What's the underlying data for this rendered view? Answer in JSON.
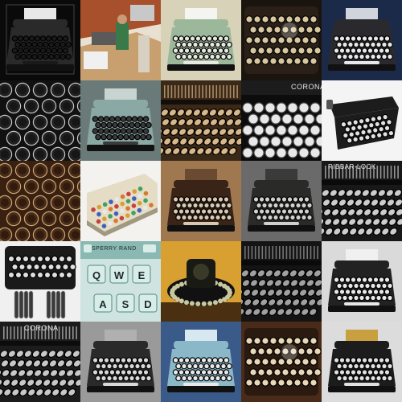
{
  "mosaic": {
    "rows": 5,
    "columns": 5,
    "subject": "typewriter",
    "tiles": [
      {
        "row": 0,
        "col": 0,
        "scene": "front",
        "bg": "#0a0a0a",
        "body": "#2a2a2a",
        "keys": "#1a1a1a",
        "paper": "#e8e8e8",
        "frame": "#444444"
      },
      {
        "row": 0,
        "col": 1,
        "scene": "room",
        "bg": "#c8a070",
        "body": "#8a7a6a",
        "keys": "#333333",
        "paper": "#f0f0f0"
      },
      {
        "row": 0,
        "col": 2,
        "scene": "front",
        "bg": "#d8d2b8",
        "body": "#9cb89a",
        "keys": "#e8e8e0",
        "paper": "#f4f4f0"
      },
      {
        "row": 0,
        "col": 3,
        "scene": "keys-top",
        "bg": "#1a140e",
        "body": "#2a2018",
        "keys": "#d8c8a0"
      },
      {
        "row": 0,
        "col": 4,
        "scene": "front",
        "bg": "#1c2a4a",
        "body": "#2a2a2e",
        "keys": "#e8e8e8",
        "paper": "#d0d4dc"
      },
      {
        "row": 1,
        "col": 0,
        "scene": "keys-close",
        "bg": "#111111",
        "body": "#222222",
        "keys": "#c8c8c8"
      },
      {
        "row": 1,
        "col": 1,
        "scene": "front",
        "bg": "#6a7a78",
        "body": "#8aa8a4",
        "keys": "#3a3a3a",
        "paper": "#c8d4d0"
      },
      {
        "row": 1,
        "col": 2,
        "scene": "keys-angled",
        "bg": "#140e0a",
        "body": "#3a2818",
        "keys": "#d8b888"
      },
      {
        "row": 1,
        "col": 3,
        "scene": "keys-letters",
        "bg": "#0c0c0c",
        "body": "#1c1c1c",
        "keys": "#e8e8e8",
        "brand": "CORONA"
      },
      {
        "row": 1,
        "col": 4,
        "scene": "portable",
        "bg": "#f4f4f4",
        "body": "#1c1c1c",
        "keys": "#e0e0e0"
      },
      {
        "row": 2,
        "col": 0,
        "scene": "keys-close",
        "bg": "#3a2010",
        "body": "#4a2c18",
        "keys": "#c8a878"
      },
      {
        "row": 2,
        "col": 1,
        "scene": "colorful",
        "bg": "#f4f2ee",
        "body": "#e4dcc4",
        "keys": "#d8b080"
      },
      {
        "row": 2,
        "col": 2,
        "scene": "front",
        "bg": "#a07850",
        "body": "#3a2418",
        "keys": "#d8c8b0",
        "paper": "#6a4a30"
      },
      {
        "row": 2,
        "col": 3,
        "scene": "front",
        "bg": "#6a6a6a",
        "body": "#2a2a28",
        "keys": "#d0d0d0",
        "paper": "#3a3a3a"
      },
      {
        "row": 2,
        "col": 4,
        "scene": "keys-angled",
        "bg": "#0a0a0a",
        "body": "#181818",
        "keys": "#cccccc",
        "brand": "RIBBAR-LOCK"
      },
      {
        "row": 3,
        "col": 0,
        "scene": "hands",
        "bg": "#f0f0f0",
        "body": "#1a1a1a",
        "keys": "#e0e0e0"
      },
      {
        "row": 3,
        "col": 1,
        "scene": "keys-letters",
        "bg": "#cfe4e0",
        "body": "#8ab8b2",
        "keys": "#d8ece8",
        "brand": "SPERRY RAND",
        "letters": [
          "Q",
          "W",
          "E",
          "A",
          "S",
          "D"
        ]
      },
      {
        "row": 3,
        "col": 2,
        "scene": "round",
        "bg": "#d8a030",
        "body": "#1a1a14",
        "keys": "#c8c8a0"
      },
      {
        "row": 3,
        "col": 3,
        "scene": "keys-angled",
        "bg": "#0a0a0a",
        "body": "#141414",
        "keys": "#a0a0a0"
      },
      {
        "row": 3,
        "col": 4,
        "scene": "front",
        "bg": "#dadada",
        "body": "#222222",
        "keys": "#e8e8e8",
        "paper": "#f0f0f0"
      },
      {
        "row": 4,
        "col": 0,
        "scene": "keys-angled",
        "bg": "#0c0c0c",
        "body": "#1c1c1c",
        "keys": "#c8c8c8",
        "brand": "CORONA"
      },
      {
        "row": 4,
        "col": 1,
        "scene": "front",
        "bg": "#9a9a9a",
        "body": "#2a2a2a",
        "keys": "#d8d8d8",
        "paper": "#b0b0b0"
      },
      {
        "row": 4,
        "col": 2,
        "scene": "front",
        "bg": "#3a5a8a",
        "body": "#8ab8c8",
        "keys": "#e8e8e8",
        "paper": "#d8e8f0"
      },
      {
        "row": 4,
        "col": 3,
        "scene": "keys-top",
        "bg": "#4a2a18",
        "body": "#2a1a10",
        "keys": "#e8d8b8"
      },
      {
        "row": 4,
        "col": 4,
        "scene": "front",
        "bg": "#dcdcdc",
        "body": "#1c1c1c",
        "keys": "#e0e0e0",
        "paper": "#c8a040"
      }
    ]
  }
}
